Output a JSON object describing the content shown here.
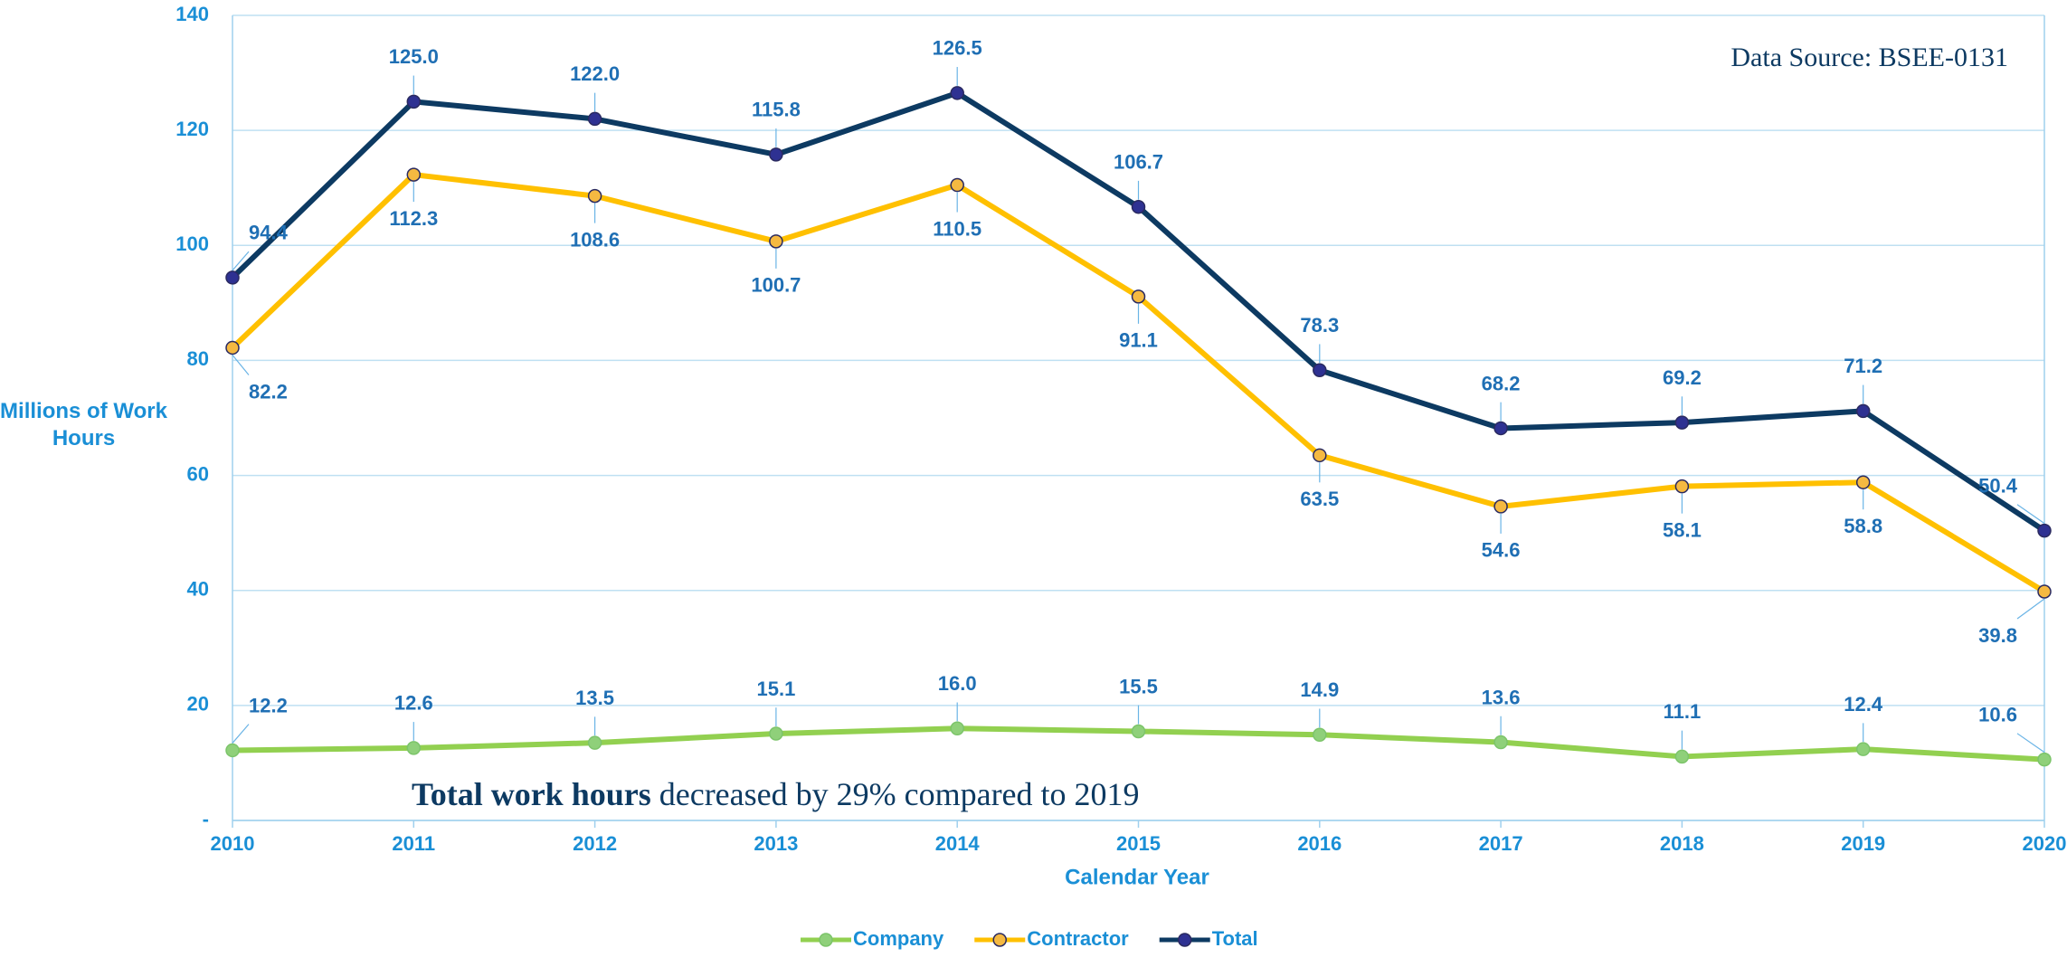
{
  "chart_data": {
    "type": "line",
    "source": "Data Source: BSEE-0131",
    "annotation": {
      "bold": "Total work hours",
      "text": " decreased by 29% compared to 2019"
    },
    "x_label": "Calendar Year",
    "y_label": "Millions of Work Hours",
    "categories": [
      "2010",
      "2011",
      "2012",
      "2013",
      "2014",
      "2015",
      "2016",
      "2017",
      "2018",
      "2019",
      "2020"
    ],
    "series": [
      {
        "name": "Company",
        "color": "#92d050",
        "marker": "#8fd07a",
        "values": [
          12.2,
          12.6,
          13.5,
          15.1,
          16.0,
          15.5,
          14.9,
          13.6,
          11.1,
          12.4,
          10.6
        ],
        "value_labels": [
          "12.2",
          "12.6",
          "13.5",
          "15.1",
          "16.0",
          "15.5",
          "14.9",
          "13.6",
          "11.1",
          "12.4",
          "10.6"
        ]
      },
      {
        "name": "Contractor",
        "color": "#ffc000",
        "marker": "#f5b941",
        "values": [
          82.2,
          112.3,
          108.6,
          100.7,
          110.5,
          91.1,
          63.5,
          54.6,
          58.1,
          58.8,
          39.8
        ],
        "value_labels": [
          "82.2",
          "112.3",
          "108.6",
          "100.7",
          "110.5",
          "91.1",
          "63.5",
          "54.6",
          "58.1",
          "58.8",
          "39.8"
        ]
      },
      {
        "name": "Total",
        "color": "#0d3a62",
        "marker": "#2e3192",
        "values": [
          94.4,
          125.0,
          122.0,
          115.8,
          126.5,
          106.7,
          78.3,
          68.2,
          69.2,
          71.2,
          50.4
        ],
        "value_labels": [
          "94.4",
          "125.0",
          "122.0",
          "115.8",
          "126.5",
          "106.7",
          "78.3",
          "68.2",
          "69.2",
          "71.2",
          "50.4"
        ]
      }
    ],
    "ylim": [
      0,
      140
    ],
    "yticks": [
      {
        "value": 0,
        "label": "-"
      },
      20,
      40,
      60,
      80,
      100,
      120,
      140
    ],
    "grid": true,
    "legend": "bottom"
  }
}
